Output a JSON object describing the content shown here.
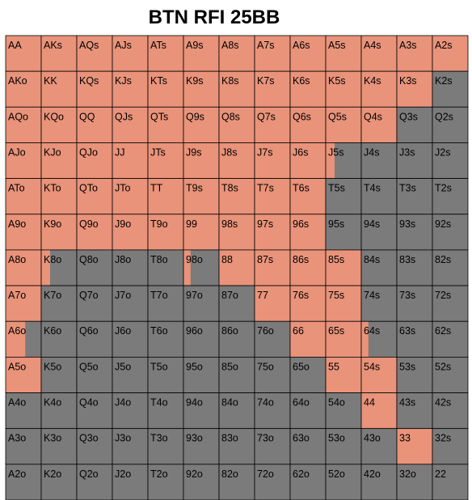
{
  "chart_data": {
    "type": "heatmap",
    "title": "BTN RFI 25BB",
    "rows": [
      [
        "AA",
        "AKs",
        "AQs",
        "AJs",
        "ATs",
        "A9s",
        "A8s",
        "A7s",
        "A6s",
        "A5s",
        "A4s",
        "A3s",
        "A2s"
      ],
      [
        "AKo",
        "KK",
        "KQs",
        "KJs",
        "KTs",
        "K9s",
        "K8s",
        "K7s",
        "K6s",
        "K5s",
        "K4s",
        "K3s",
        "K2s"
      ],
      [
        "AQo",
        "KQo",
        "QQ",
        "QJs",
        "QTs",
        "Q9s",
        "Q8s",
        "Q7s",
        "Q6s",
        "Q5s",
        "Q4s",
        "Q3s",
        "Q2s"
      ],
      [
        "AJo",
        "KJo",
        "QJo",
        "JJ",
        "JTs",
        "J9s",
        "J8s",
        "J7s",
        "J6s",
        "J5s",
        "J4s",
        "J3s",
        "J2s"
      ],
      [
        "ATo",
        "KTo",
        "QTo",
        "JTo",
        "TT",
        "T9s",
        "T8s",
        "T7s",
        "T6s",
        "T5s",
        "T4s",
        "T3s",
        "T2s"
      ],
      [
        "A9o",
        "K9o",
        "Q9o",
        "J9o",
        "T9o",
        "99",
        "98s",
        "97s",
        "96s",
        "95s",
        "94s",
        "93s",
        "92s"
      ],
      [
        "A8o",
        "K8o",
        "Q8o",
        "J8o",
        "T8o",
        "98o",
        "88",
        "87s",
        "86s",
        "85s",
        "84s",
        "83s",
        "82s"
      ],
      [
        "A7o",
        "K7o",
        "Q7o",
        "J7o",
        "T7o",
        "97o",
        "87o",
        "77",
        "76s",
        "75s",
        "74s",
        "73s",
        "72s"
      ],
      [
        "A6o",
        "K6o",
        "Q6o",
        "J6o",
        "T6o",
        "96o",
        "86o",
        "76o",
        "66",
        "65s",
        "64s",
        "63s",
        "62s"
      ],
      [
        "A5o",
        "K5o",
        "Q5o",
        "J5o",
        "T5o",
        "95o",
        "85o",
        "75o",
        "65o",
        "55",
        "54s",
        "53s",
        "52s"
      ],
      [
        "A4o",
        "K4o",
        "Q4o",
        "J4o",
        "T4o",
        "94o",
        "84o",
        "74o",
        "64o",
        "54o",
        "44",
        "43s",
        "42s"
      ],
      [
        "A3o",
        "K3o",
        "Q3o",
        "J3o",
        "T3o",
        "93o",
        "83o",
        "73o",
        "63o",
        "53o",
        "43o",
        "33",
        "32s"
      ],
      [
        "A2o",
        "K2o",
        "Q2o",
        "J2o",
        "T2o",
        "92o",
        "82o",
        "72o",
        "62o",
        "52o",
        "42o",
        "32o",
        "22"
      ]
    ],
    "raise_fraction": [
      [
        1,
        1,
        1,
        1,
        1,
        1,
        1,
        1,
        1,
        1,
        1,
        1,
        1
      ],
      [
        1,
        1,
        1,
        1,
        1,
        1,
        1,
        1,
        1,
        1,
        1,
        1,
        0
      ],
      [
        1,
        1,
        1,
        1,
        1,
        1,
        1,
        1,
        1,
        1,
        1,
        0,
        0
      ],
      [
        1,
        1,
        1,
        1,
        1,
        1,
        1,
        1,
        1,
        0.25,
        0,
        0,
        0
      ],
      [
        1,
        1,
        1,
        1,
        1,
        1,
        1,
        1,
        1,
        0,
        0,
        0,
        0
      ],
      [
        1,
        1,
        1,
        1,
        1,
        1,
        1,
        1,
        1,
        0,
        0,
        0,
        0
      ],
      [
        1,
        0.25,
        0,
        0,
        0,
        0.2,
        1,
        1,
        1,
        1,
        0,
        0,
        0
      ],
      [
        1,
        0,
        0,
        0,
        0,
        0,
        0,
        1,
        1,
        1,
        0,
        0,
        0
      ],
      [
        0.55,
        0,
        0,
        0,
        0,
        0,
        0,
        0,
        1,
        1,
        0.2,
        0,
        0
      ],
      [
        1,
        0,
        0,
        0,
        0,
        0,
        0,
        0,
        0,
        1,
        1,
        0,
        0
      ],
      [
        0,
        0,
        0,
        0,
        0,
        0,
        0,
        0,
        0,
        0,
        1,
        0,
        0
      ],
      [
        0,
        0,
        0,
        0,
        0,
        0,
        0,
        0,
        0,
        0,
        0,
        1,
        0
      ],
      [
        0,
        0,
        0,
        0,
        0,
        0,
        0,
        0,
        0,
        0,
        0,
        0,
        0
      ]
    ],
    "colors": {
      "raise": "#e9937a",
      "fold": "#7b7b7b",
      "border": "#000000",
      "text": "#000000"
    }
  }
}
